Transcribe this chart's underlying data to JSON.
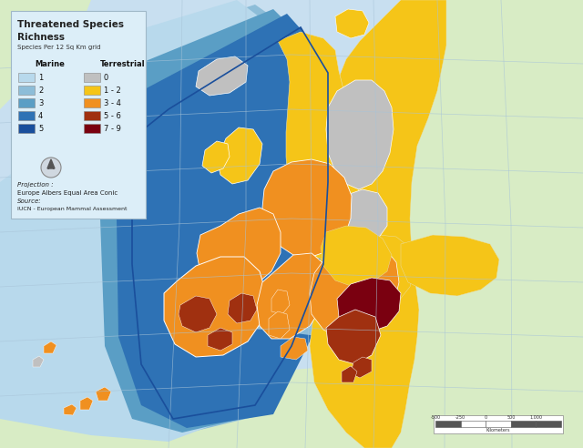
{
  "title_line1": "Threatened Species",
  "title_line2": "Richness",
  "subtitle": "Species Per 12 Sq Km grid",
  "legend_title_marine": "Marine",
  "legend_title_terrestrial": "Terrestrial",
  "marine_labels": [
    "1",
    "2",
    "3",
    "4",
    "5"
  ],
  "marine_colors": [
    "#b8d9ec",
    "#8dbdd8",
    "#5a9ec5",
    "#2e72b5",
    "#1a4f9c"
  ],
  "terrestrial_labels": [
    "0",
    "1 - 2",
    "3 - 4",
    "5 - 6",
    "7 - 9"
  ],
  "terrestrial_colors": [
    "#c0c0c0",
    "#f5c518",
    "#f09020",
    "#a03010",
    "#7a0010"
  ],
  "bg_ocean_color": "#c8dff0",
  "bg_land_outer": "#d8ecc5",
  "legend_bg": "#dceef8",
  "figsize": [
    6.4,
    4.92
  ],
  "dpi": 100
}
